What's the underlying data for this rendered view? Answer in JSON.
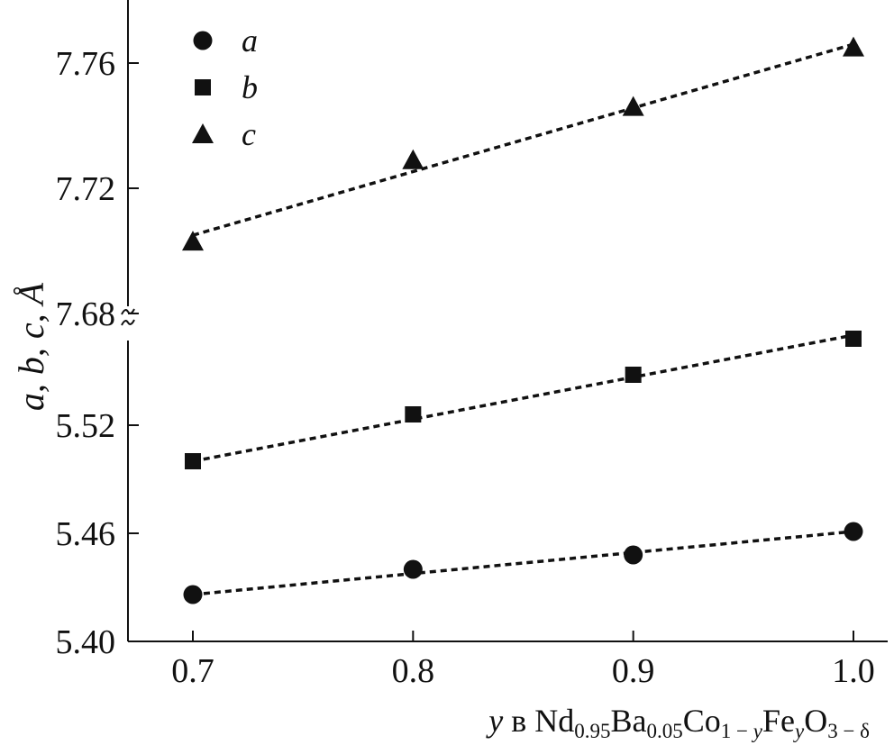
{
  "chart_data": {
    "type": "scatter",
    "x": [
      0.7,
      0.8,
      0.9,
      1.0
    ],
    "xticks": [
      "0.7",
      "0.8",
      "0.9",
      "1.0"
    ],
    "series": [
      {
        "name": "a",
        "marker": "circle",
        "values": [
          5.426,
          5.44,
          5.448,
          5.461
        ]
      },
      {
        "name": "b",
        "marker": "square",
        "values": [
          5.5,
          5.526,
          5.548,
          5.568
        ]
      },
      {
        "name": "c",
        "marker": "triangle",
        "values": [
          7.703,
          7.729,
          7.746,
          7.765
        ]
      }
    ],
    "fits": [
      {
        "series": "a",
        "start": [
          0.7,
          5.426
        ],
        "end": [
          1.0,
          5.461
        ]
      },
      {
        "series": "b",
        "start": [
          0.7,
          5.5
        ],
        "end": [
          1.0,
          5.57
        ]
      },
      {
        "series": "c",
        "start": [
          0.7,
          7.705
        ],
        "end": [
          1.0,
          7.766
        ]
      }
    ],
    "y_axis": {
      "broken": true,
      "lower_range": [
        5.4,
        5.58
      ],
      "upper_range": [
        7.68,
        7.78
      ],
      "ticks": [
        "5.40",
        "5.46",
        "5.52",
        "7.68",
        "7.72",
        "7.76"
      ],
      "tick_values": [
        5.4,
        5.46,
        5.52,
        7.68,
        7.72,
        7.76
      ]
    },
    "ylabel": "a, b, c, Å",
    "xlabel": {
      "var": "y",
      "prep": " в ",
      "formula": [
        {
          "t": "Nd"
        },
        {
          "t": "0.95",
          "sub": true
        },
        {
          "t": "Ba"
        },
        {
          "t": "0.05",
          "sub": true
        },
        {
          "t": "Co"
        },
        {
          "t": "1 − ",
          "sub": true
        },
        {
          "t": "y",
          "sub": true,
          "italic": true
        },
        {
          "t": "Fe"
        },
        {
          "t": "y",
          "sub": true,
          "italic": true
        },
        {
          "t": "O"
        },
        {
          "t": "3 − δ",
          "sub": true
        }
      ]
    },
    "grid": false,
    "legend_position": "top-left",
    "line_style": "dashed"
  }
}
